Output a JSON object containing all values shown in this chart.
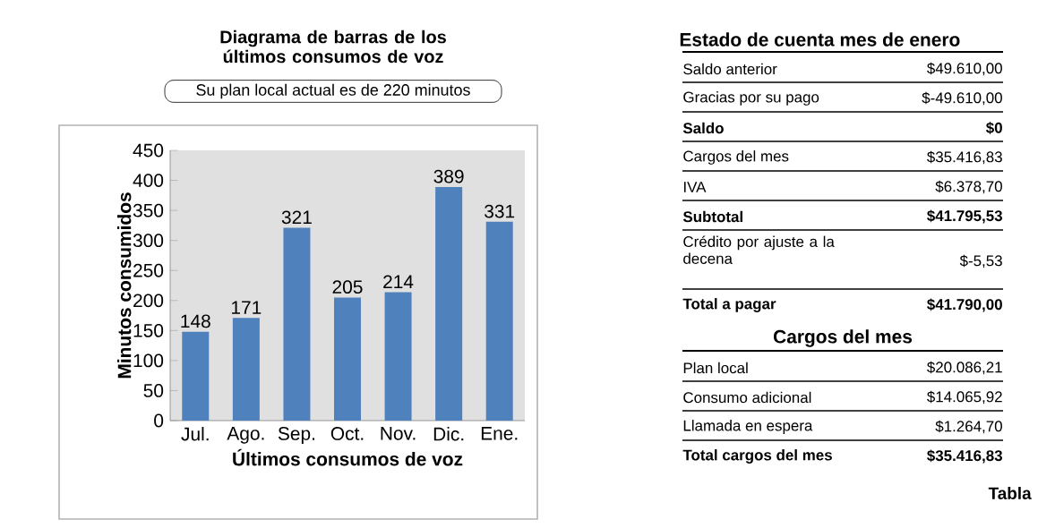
{
  "chart_data": [
    {
      "type": "bar",
      "title": "Diagrama de barras de los últimos consumos de voz",
      "subtitle": "Su plan local actual es de 220 minutos",
      "xlabel": "Últimos consumos de voz",
      "ylabel": "Minutos consumidos",
      "categories": [
        "Jul.",
        "Ago.",
        "Sep.",
        "Oct.",
        "Nov.",
        "Dic.",
        "Ene."
      ],
      "values": [
        148,
        171,
        321,
        205,
        214,
        389,
        331
      ],
      "color": "#4f81bd",
      "ylim": [
        0,
        450
      ],
      "yticks": [
        0,
        50,
        100,
        150,
        200,
        250,
        300,
        350,
        400,
        450
      ],
      "data_labels": true
    },
    {
      "type": "other",
      "title": "Estado de cuenta mes de enero",
      "categories": [
        "Saldo anterior",
        "Gracias por su pago",
        "**Saldo**",
        "Cargos del mes",
        "IVA",
        "**Subtotal**",
        "Crédito por ajuste a la decena",
        "**Total a pagar**"
      ],
      "value_labels": [
        "$49.610,00",
        "$-49.610,00",
        "**$0**",
        "$35.416,83",
        "$6.378,70",
        "**$41.795,53**",
        "$-5,53",
        "**$41.790,00**"
      ]
    },
    {
      "type": "other",
      "title": "Cargos del mes",
      "categories": [
        "Plan local",
        "Consumo adicional",
        "Llamada en espera",
        "**Total cargos del mes**"
      ],
      "value_labels": [
        "$20.086,21",
        "$14.065,92",
        "$1.264,70",
        "**$35.416,83**"
      ],
      "annotations": [
        "Tabla"
      ]
    }
  ]
}
